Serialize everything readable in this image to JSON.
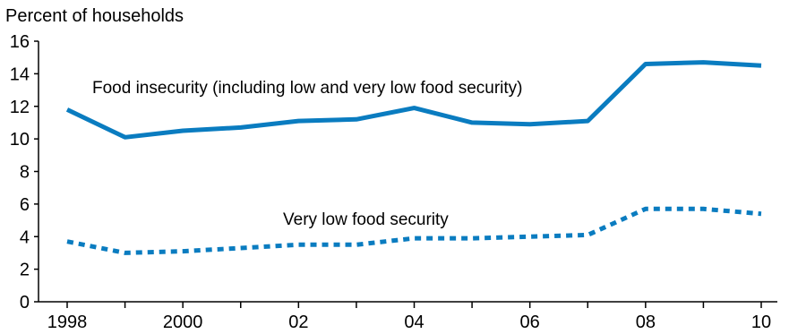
{
  "chart_data": {
    "type": "line",
    "title": "",
    "ylabel": "Percent of households",
    "xlabel": "",
    "ylim": [
      0,
      16
    ],
    "yticks": [
      0,
      2,
      4,
      6,
      8,
      10,
      12,
      14,
      16
    ],
    "x": [
      1998,
      1999,
      2000,
      2001,
      2002,
      2003,
      2004,
      2005,
      2006,
      2007,
      2008,
      2009,
      2010
    ],
    "xticks": [
      1998,
      2000,
      2002,
      2004,
      2006,
      2008,
      2010
    ],
    "xtick_labels": [
      "1998",
      "2000",
      "02",
      "04",
      "06",
      "08",
      "10"
    ],
    "grid": false,
    "legend": "none",
    "series": [
      {
        "name": "Food insecurity (including low and very low food security)",
        "style": "solid",
        "color": "#0a7cc0",
        "values": [
          11.8,
          10.1,
          10.5,
          10.7,
          11.1,
          11.2,
          11.9,
          11.0,
          10.9,
          11.1,
          14.6,
          14.7,
          14.5
        ]
      },
      {
        "name": "Very low food security",
        "style": "dotted",
        "color": "#0a7cc0",
        "values": [
          3.7,
          3.0,
          3.1,
          3.3,
          3.5,
          3.5,
          3.9,
          3.9,
          4.0,
          4.1,
          5.7,
          5.7,
          5.4
        ]
      }
    ]
  }
}
